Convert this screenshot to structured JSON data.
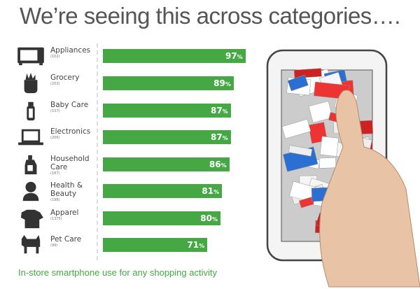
{
  "title": "We’re seeing this across categories….",
  "footer": "In-store smartphone use for any shopping activity",
  "colors": {
    "bar": "#45a845",
    "text": "#444444"
  },
  "chart_data": {
    "type": "bar",
    "orientation": "horizontal",
    "xlim": [
      0,
      100
    ],
    "unit": "%",
    "categories": [
      {
        "label": "Appliances",
        "count": "(102)",
        "value": 97,
        "icon": "microwave-icon"
      },
      {
        "label": "Grocery",
        "count": "(203)",
        "value": 89,
        "icon": "grocery-bag-icon"
      },
      {
        "label": "Baby Care",
        "count": "(137)",
        "value": 87,
        "icon": "baby-bottle-icon"
      },
      {
        "label": "Electronics",
        "count": "(206)",
        "value": 87,
        "icon": "laptop-icon"
      },
      {
        "label": "Household Care",
        "count": "(187)",
        "value": 86,
        "icon": "detergent-bottle-icon"
      },
      {
        "label": "Health & Beauty",
        "count": "(198)",
        "value": 81,
        "icon": "woman-icon"
      },
      {
        "label": "Apparel",
        "count": "(1375)",
        "value": 80,
        "icon": "tshirt-icon"
      },
      {
        "label": "Pet Care",
        "count": "(99)",
        "value": 71,
        "icon": "dog-icon"
      }
    ]
  }
}
